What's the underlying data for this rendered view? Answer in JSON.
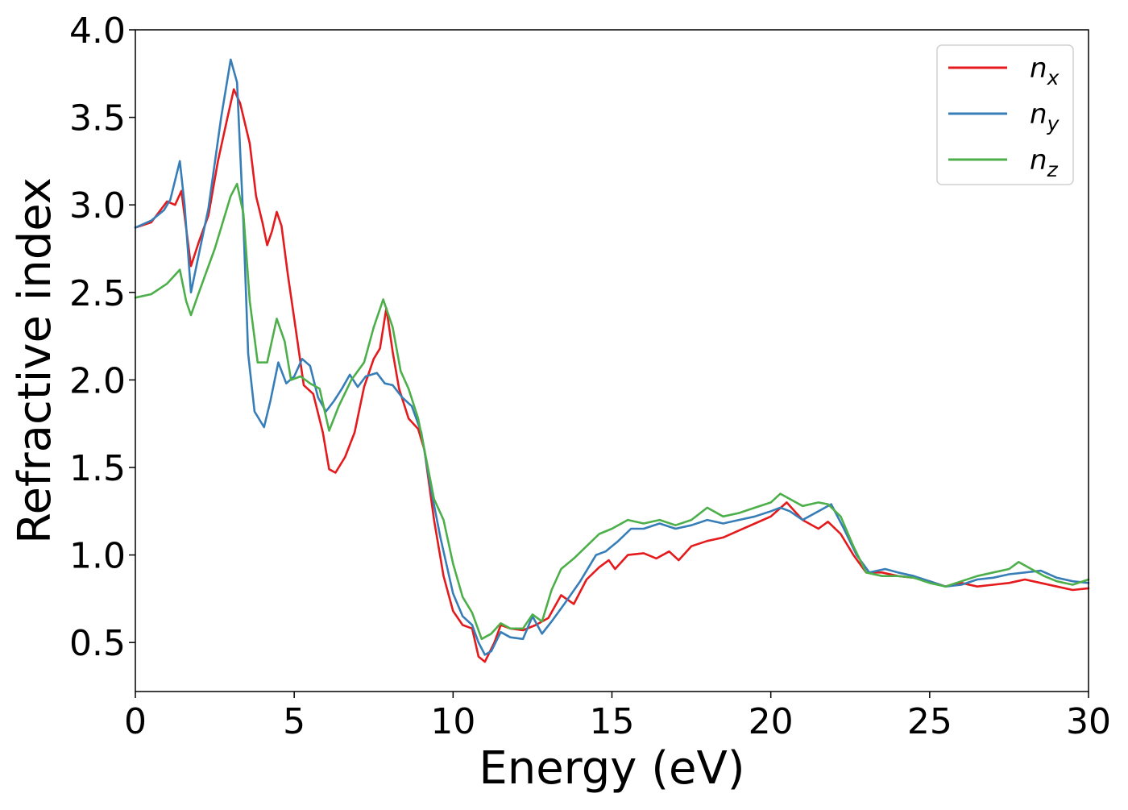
{
  "chart_data": {
    "type": "line",
    "xlabel": "Energy (eV)",
    "ylabel": "Refractive index",
    "xlim": [
      0,
      30
    ],
    "ylim": [
      0.22,
      4.0
    ],
    "xticks": [
      "0",
      "5",
      "10",
      "15",
      "20",
      "25",
      "30"
    ],
    "yticks": [
      "0.5",
      "1.0",
      "1.5",
      "2.0",
      "2.5",
      "3.0",
      "3.5",
      "4.0"
    ],
    "grid": false,
    "legend_position": "top-right",
    "series": [
      {
        "name": "n_x",
        "legend_base": "n",
        "legend_sub": "x",
        "color": "#e41a1c",
        "points": [
          [
            0,
            2.87
          ],
          [
            0.5,
            2.9
          ],
          [
            1.0,
            3.02
          ],
          [
            1.25,
            3.0
          ],
          [
            1.45,
            3.08
          ],
          [
            1.75,
            2.65
          ],
          [
            2.0,
            2.79
          ],
          [
            2.3,
            2.94
          ],
          [
            2.6,
            3.25
          ],
          [
            2.9,
            3.5
          ],
          [
            3.1,
            3.66
          ],
          [
            3.3,
            3.58
          ],
          [
            3.6,
            3.35
          ],
          [
            3.8,
            3.05
          ],
          [
            4.0,
            2.9
          ],
          [
            4.15,
            2.77
          ],
          [
            4.3,
            2.85
          ],
          [
            4.45,
            2.96
          ],
          [
            4.6,
            2.88
          ],
          [
            4.8,
            2.6
          ],
          [
            5.0,
            2.35
          ],
          [
            5.3,
            1.97
          ],
          [
            5.6,
            1.92
          ],
          [
            5.9,
            1.7
          ],
          [
            6.1,
            1.49
          ],
          [
            6.3,
            1.47
          ],
          [
            6.6,
            1.56
          ],
          [
            6.9,
            1.7
          ],
          [
            7.2,
            1.96
          ],
          [
            7.5,
            2.12
          ],
          [
            7.7,
            2.18
          ],
          [
            7.9,
            2.41
          ],
          [
            8.1,
            2.16
          ],
          [
            8.3,
            1.95
          ],
          [
            8.6,
            1.78
          ],
          [
            8.9,
            1.72
          ],
          [
            9.1,
            1.6
          ],
          [
            9.4,
            1.2
          ],
          [
            9.7,
            0.88
          ],
          [
            10.0,
            0.68
          ],
          [
            10.3,
            0.6
          ],
          [
            10.6,
            0.58
          ],
          [
            10.8,
            0.42
          ],
          [
            11.0,
            0.39
          ],
          [
            11.3,
            0.5
          ],
          [
            11.5,
            0.6
          ],
          [
            11.8,
            0.58
          ],
          [
            12.2,
            0.57
          ],
          [
            12.6,
            0.6
          ],
          [
            13.0,
            0.64
          ],
          [
            13.4,
            0.77
          ],
          [
            13.8,
            0.72
          ],
          [
            14.2,
            0.86
          ],
          [
            14.6,
            0.93
          ],
          [
            14.9,
            0.97
          ],
          [
            15.1,
            0.92
          ],
          [
            15.5,
            1.0
          ],
          [
            16.0,
            1.01
          ],
          [
            16.4,
            0.98
          ],
          [
            16.8,
            1.02
          ],
          [
            17.1,
            0.97
          ],
          [
            17.5,
            1.05
          ],
          [
            18.0,
            1.08
          ],
          [
            18.5,
            1.1
          ],
          [
            19.0,
            1.14
          ],
          [
            19.5,
            1.18
          ],
          [
            20.0,
            1.22
          ],
          [
            20.5,
            1.3
          ],
          [
            21.0,
            1.2
          ],
          [
            21.5,
            1.15
          ],
          [
            21.8,
            1.19
          ],
          [
            22.2,
            1.12
          ],
          [
            22.6,
            1.0
          ],
          [
            23.0,
            0.9
          ],
          [
            23.5,
            0.9
          ],
          [
            24.0,
            0.88
          ],
          [
            24.5,
            0.87
          ],
          [
            25.0,
            0.85
          ],
          [
            25.5,
            0.82
          ],
          [
            26.0,
            0.84
          ],
          [
            26.5,
            0.82
          ],
          [
            27.0,
            0.83
          ],
          [
            27.5,
            0.84
          ],
          [
            28.0,
            0.86
          ],
          [
            28.5,
            0.84
          ],
          [
            29.0,
            0.82
          ],
          [
            29.5,
            0.8
          ],
          [
            30.0,
            0.81
          ]
        ]
      },
      {
        "name": "n_y",
        "legend_base": "n",
        "legend_sub": "y",
        "color": "#377eb8",
        "points": [
          [
            0,
            2.87
          ],
          [
            0.5,
            2.91
          ],
          [
            0.9,
            2.97
          ],
          [
            1.1,
            3.03
          ],
          [
            1.4,
            3.25
          ],
          [
            1.55,
            3.0
          ],
          [
            1.75,
            2.5
          ],
          [
            2.0,
            2.72
          ],
          [
            2.3,
            2.98
          ],
          [
            2.7,
            3.5
          ],
          [
            3.0,
            3.83
          ],
          [
            3.2,
            3.7
          ],
          [
            3.4,
            2.9
          ],
          [
            3.55,
            2.15
          ],
          [
            3.75,
            1.82
          ],
          [
            4.05,
            1.73
          ],
          [
            4.25,
            1.88
          ],
          [
            4.5,
            2.1
          ],
          [
            4.75,
            1.98
          ],
          [
            5.0,
            2.02
          ],
          [
            5.25,
            2.12
          ],
          [
            5.5,
            2.08
          ],
          [
            5.75,
            1.9
          ],
          [
            6.0,
            1.82
          ],
          [
            6.25,
            1.88
          ],
          [
            6.5,
            1.95
          ],
          [
            6.75,
            2.03
          ],
          [
            7.0,
            1.96
          ],
          [
            7.25,
            2.02
          ],
          [
            7.6,
            2.04
          ],
          [
            7.85,
            1.98
          ],
          [
            8.1,
            1.97
          ],
          [
            8.4,
            1.9
          ],
          [
            8.7,
            1.85
          ],
          [
            9.0,
            1.7
          ],
          [
            9.3,
            1.38
          ],
          [
            9.6,
            1.1
          ],
          [
            10.0,
            0.78
          ],
          [
            10.3,
            0.65
          ],
          [
            10.6,
            0.6
          ],
          [
            10.8,
            0.5
          ],
          [
            11.0,
            0.43
          ],
          [
            11.2,
            0.45
          ],
          [
            11.5,
            0.56
          ],
          [
            11.8,
            0.53
          ],
          [
            12.2,
            0.52
          ],
          [
            12.5,
            0.65
          ],
          [
            12.8,
            0.55
          ],
          [
            13.1,
            0.62
          ],
          [
            13.5,
            0.72
          ],
          [
            14.0,
            0.85
          ],
          [
            14.5,
            1.0
          ],
          [
            14.8,
            1.02
          ],
          [
            15.2,
            1.08
          ],
          [
            15.6,
            1.15
          ],
          [
            16.0,
            1.15
          ],
          [
            16.5,
            1.18
          ],
          [
            17.0,
            1.15
          ],
          [
            17.5,
            1.17
          ],
          [
            18.0,
            1.2
          ],
          [
            18.5,
            1.18
          ],
          [
            19.0,
            1.2
          ],
          [
            19.5,
            1.22
          ],
          [
            20.0,
            1.25
          ],
          [
            20.3,
            1.27
          ],
          [
            20.6,
            1.25
          ],
          [
            21.0,
            1.2
          ],
          [
            21.5,
            1.25
          ],
          [
            21.9,
            1.29
          ],
          [
            22.3,
            1.15
          ],
          [
            22.7,
            1.0
          ],
          [
            23.1,
            0.9
          ],
          [
            23.6,
            0.92
          ],
          [
            24.0,
            0.9
          ],
          [
            24.5,
            0.88
          ],
          [
            25.0,
            0.85
          ],
          [
            25.5,
            0.82
          ],
          [
            26.0,
            0.83
          ],
          [
            26.5,
            0.86
          ],
          [
            27.0,
            0.87
          ],
          [
            27.5,
            0.89
          ],
          [
            28.0,
            0.9
          ],
          [
            28.5,
            0.91
          ],
          [
            29.0,
            0.87
          ],
          [
            29.5,
            0.85
          ],
          [
            30.0,
            0.84
          ]
        ]
      },
      {
        "name": "n_z",
        "legend_base": "n",
        "legend_sub": "z",
        "color": "#4daf4a",
        "points": [
          [
            0,
            2.47
          ],
          [
            0.5,
            2.49
          ],
          [
            1.0,
            2.55
          ],
          [
            1.4,
            2.63
          ],
          [
            1.6,
            2.45
          ],
          [
            1.75,
            2.37
          ],
          [
            2.0,
            2.5
          ],
          [
            2.5,
            2.75
          ],
          [
            3.0,
            3.05
          ],
          [
            3.2,
            3.12
          ],
          [
            3.4,
            2.95
          ],
          [
            3.6,
            2.45
          ],
          [
            3.85,
            2.1
          ],
          [
            4.15,
            2.1
          ],
          [
            4.45,
            2.35
          ],
          [
            4.7,
            2.22
          ],
          [
            4.9,
            2.0
          ],
          [
            5.2,
            2.02
          ],
          [
            5.5,
            1.98
          ],
          [
            5.8,
            1.95
          ],
          [
            6.1,
            1.71
          ],
          [
            6.4,
            1.85
          ],
          [
            6.8,
            2.0
          ],
          [
            7.2,
            2.1
          ],
          [
            7.5,
            2.3
          ],
          [
            7.8,
            2.46
          ],
          [
            8.1,
            2.3
          ],
          [
            8.35,
            2.05
          ],
          [
            8.6,
            1.95
          ],
          [
            8.9,
            1.78
          ],
          [
            9.1,
            1.6
          ],
          [
            9.4,
            1.32
          ],
          [
            9.7,
            1.2
          ],
          [
            10.0,
            0.95
          ],
          [
            10.3,
            0.76
          ],
          [
            10.6,
            0.67
          ],
          [
            10.9,
            0.52
          ],
          [
            11.2,
            0.55
          ],
          [
            11.5,
            0.61
          ],
          [
            11.8,
            0.58
          ],
          [
            12.2,
            0.58
          ],
          [
            12.5,
            0.66
          ],
          [
            12.8,
            0.62
          ],
          [
            13.1,
            0.8
          ],
          [
            13.4,
            0.92
          ],
          [
            13.8,
            0.98
          ],
          [
            14.2,
            1.05
          ],
          [
            14.6,
            1.12
          ],
          [
            15.0,
            1.15
          ],
          [
            15.5,
            1.2
          ],
          [
            16.0,
            1.18
          ],
          [
            16.5,
            1.2
          ],
          [
            17.0,
            1.17
          ],
          [
            17.5,
            1.2
          ],
          [
            18.0,
            1.27
          ],
          [
            18.5,
            1.22
          ],
          [
            19.0,
            1.24
          ],
          [
            19.5,
            1.27
          ],
          [
            20.0,
            1.3
          ],
          [
            20.3,
            1.35
          ],
          [
            20.6,
            1.32
          ],
          [
            21.0,
            1.28
          ],
          [
            21.5,
            1.3
          ],
          [
            21.8,
            1.29
          ],
          [
            22.2,
            1.22
          ],
          [
            22.6,
            1.05
          ],
          [
            23.0,
            0.9
          ],
          [
            23.5,
            0.88
          ],
          [
            24.0,
            0.88
          ],
          [
            24.5,
            0.87
          ],
          [
            25.0,
            0.84
          ],
          [
            25.5,
            0.82
          ],
          [
            26.0,
            0.85
          ],
          [
            26.5,
            0.88
          ],
          [
            27.0,
            0.9
          ],
          [
            27.5,
            0.92
          ],
          [
            27.8,
            0.96
          ],
          [
            28.2,
            0.92
          ],
          [
            28.6,
            0.88
          ],
          [
            29.0,
            0.85
          ],
          [
            29.5,
            0.83
          ],
          [
            30.0,
            0.86
          ]
        ]
      }
    ]
  }
}
